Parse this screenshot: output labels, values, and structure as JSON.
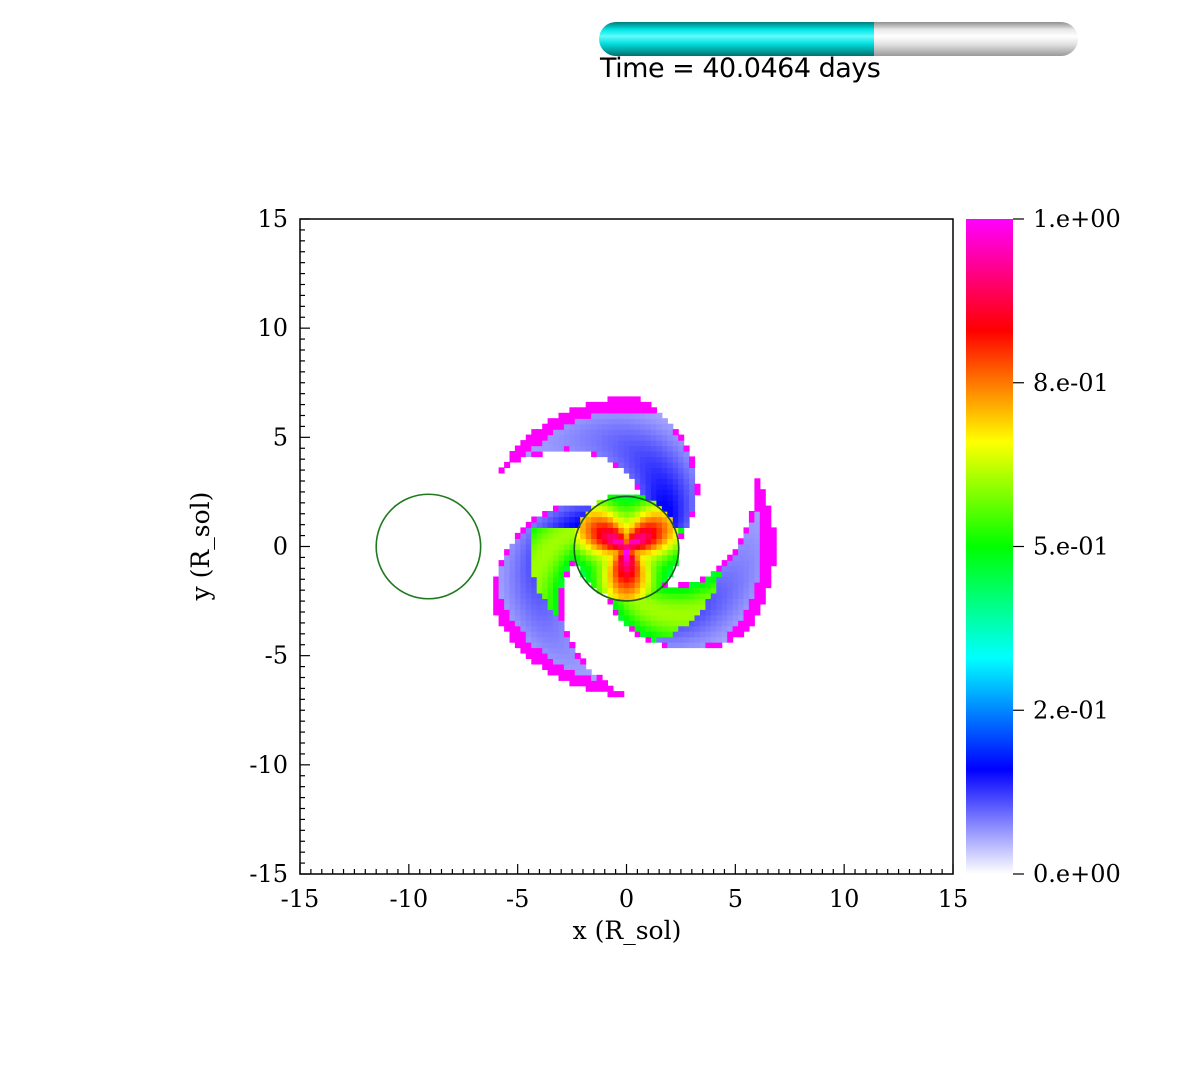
{
  "time_bar": {
    "label": "Time = 40.0464 days",
    "progress_fraction": 0.575,
    "fill_color": "#00e5e5",
    "track_color": "#e6e6e6"
  },
  "chart_data": {
    "type": "heatmap",
    "title": "",
    "xlabel": "x (R_sol)",
    "ylabel": "y (R_sol)",
    "xlim": [
      -15,
      15
    ],
    "ylim": [
      -15,
      15
    ],
    "x_ticks": [
      "-15",
      "-10",
      "-5",
      "0",
      "5",
      "10",
      "15"
    ],
    "y_ticks": [
      "15",
      "10",
      "5",
      "0",
      "-5",
      "-10",
      "-15"
    ],
    "x_tick_values": [
      -15,
      -10,
      -5,
      0,
      5,
      10,
      15
    ],
    "y_tick_values": [
      15,
      10,
      5,
      0,
      -5,
      -10,
      -15
    ],
    "colorbar": {
      "min": 0,
      "max": 1,
      "ticks": [
        {
          "value": 1.0,
          "label": "1.e+00"
        },
        {
          "value": 0.75,
          "label": "8.e-01"
        },
        {
          "value": 0.5,
          "label": "5.e-01"
        },
        {
          "value": 0.25,
          "label": "2.e-01"
        },
        {
          "value": 0.0,
          "label": "0.e+00"
        }
      ],
      "colormap": [
        {
          "v": 0.0,
          "color": "#ffffff"
        },
        {
          "v": 0.16,
          "color": "#0000ff"
        },
        {
          "v": 0.33,
          "color": "#00ffff"
        },
        {
          "v": 0.5,
          "color": "#00ff00"
        },
        {
          "v": 0.66,
          "color": "#ffff00"
        },
        {
          "v": 0.83,
          "color": "#ff0000"
        },
        {
          "v": 1.0,
          "color": "#ff00ff"
        }
      ]
    },
    "circles": [
      {
        "cx": -9.1,
        "cy": 0.0,
        "r": 2.4,
        "color": "#1f7a1f"
      },
      {
        "cx": 0.0,
        "cy": -0.1,
        "r": 2.4,
        "color": "#1f5a1f"
      }
    ],
    "field": {
      "center": [
        0.0,
        0.0
      ],
      "core_value": 0.92,
      "outer_radius": 6.8,
      "arms": 3
    },
    "grid": false
  }
}
